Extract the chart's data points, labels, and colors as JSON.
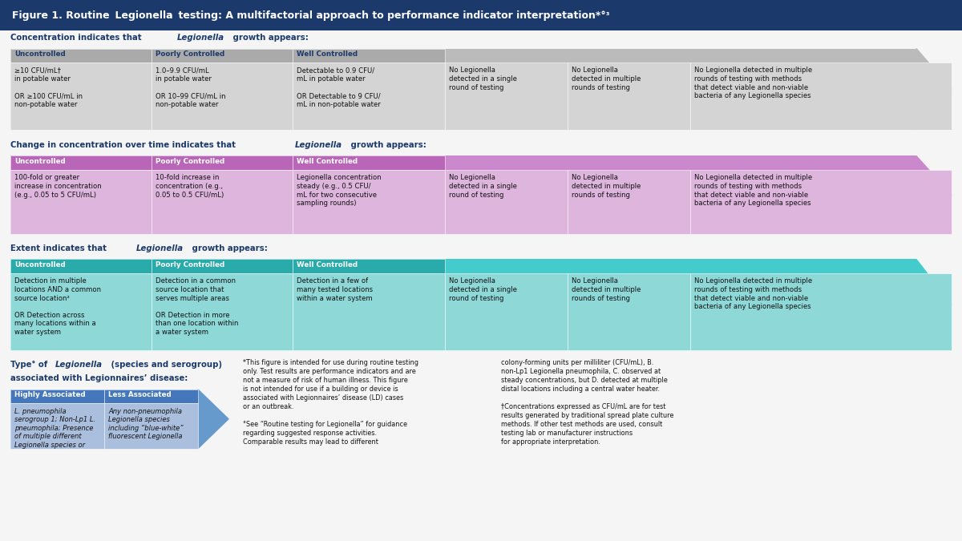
{
  "header_bg": "#1B3A6B",
  "bg_color": "#F5F5F5",
  "label_color": "#1B3A6B",
  "col_headers": [
    "Uncontrolled",
    "Poorly Controlled",
    "Well Controlled"
  ],
  "table1_header_bg": "#AAAAAA",
  "table1_body_bg": "#D4D4D4",
  "table2_header_bg": "#B966B9",
  "table2_body_bg": "#DDB5DD",
  "table3_header_bg": "#2AABAB",
  "table3_body_bg": "#8FD8D8",
  "table4_header_bg": "#4477BB",
  "table4_body_bg": "#AABEDD",
  "arrow1_color": "#BBBBBB",
  "arrow2_color": "#CC88CC",
  "arrow3_color": "#44CCCC",
  "arrow4_color": "#6699CC",
  "cell_texts_s1": [
    "≥10 CFU/mL†\nin potable water\n\nOR ≥100 CFU/mL in\nnon-potable water",
    "1.0–9.9 CFU/mL\nin potable water\n\nOR 10–99 CFU/mL in\nnon-potable water",
    "Detectable to 0.9 CFU/\nmL in potable water\n\nOR Detectable to 9 CFU/\nmL in non-potable water",
    "No Legionella\ndetected in a single\nround of testing",
    "No Legionella\ndetected in multiple\nrounds of testing",
    "No Legionella detected in multiple\nrounds of testing with methods\nthat detect viable and non-viable\nbacteria of any Legionella species"
  ],
  "cell_texts_s2": [
    "100-fold or greater\nincrease in concentration\n(e.g., 0.05 to 5 CFU/mL)",
    "10-fold increase in\nconcentration (e.g.,\n0.05 to 0.5 CFU/mL)",
    "Legionella concentration\nsteady (e.g., 0.5 CFU/\nmL for two consecutive\nsampling rounds)",
    "No Legionella\ndetected in a single\nround of testing",
    "No Legionella\ndetected in multiple\nrounds of testing",
    "No Legionella detected in multiple\nrounds of testing with methods\nthat detect viable and non-viable\nbacteria of any Legionella species"
  ],
  "cell_texts_s3": [
    "Detection in multiple\nlocations AND a common\nsource location²\n\nOR Detection across\nmany locations within a\nwater system",
    "Detection in a common\nsource location that\nserves multiple areas\n\nOR Detection in more\nthan one location within\na water system",
    "Detection in a few of\nmany tested locations\nwithin a water system",
    "No Legionella\ndetected in a single\nround of testing",
    "No Legionella\ndetected in multiple\nrounds of testing",
    "No Legionella detected in multiple\nrounds of testing with methods\nthat detect viable and non-viable\nbacteria of any Legionella species"
  ],
  "table4_col_headers": [
    "Highly Associated",
    "Less Associated"
  ],
  "cell_texts_s4": [
    "L. pneumophila\nserogroup 1; Non-Lp1 L.\npneumophila; Presence\nof multiple different\nLegionella species or",
    "Any non-pneumophila\nLegionella species\nincluding “blue-white”\nfluorescent Legionella"
  ],
  "footnote1": "*This figure is intended for use during routine testing\nonly. Test results are performance indicators and are\nnot a measure of risk of human illness. This figure\nis not intended for use if a building or device is\nassociated with Legionnaires’ disease (LD) cases\nor an outbreak.\n\n°See “Routine testing for Legionella” for guidance\nregarding suggested response activities.\nComparable results may lead to different",
  "footnote2": "colony-forming units per milliliter (CFU/mL), B.\nnon-Lp1 Legionella pneumophila, C. observed at\nsteady concentrations, but D. detected at multiple\ndistal locations including a central water heater.\n\n†Concentrations expressed as CFU/mL are for test\nresults generated by traditional spread plate culture\nmethods. If other test methods are used, consult\ntesting lab or manufacturer instructions\nfor appropriate interpretation."
}
